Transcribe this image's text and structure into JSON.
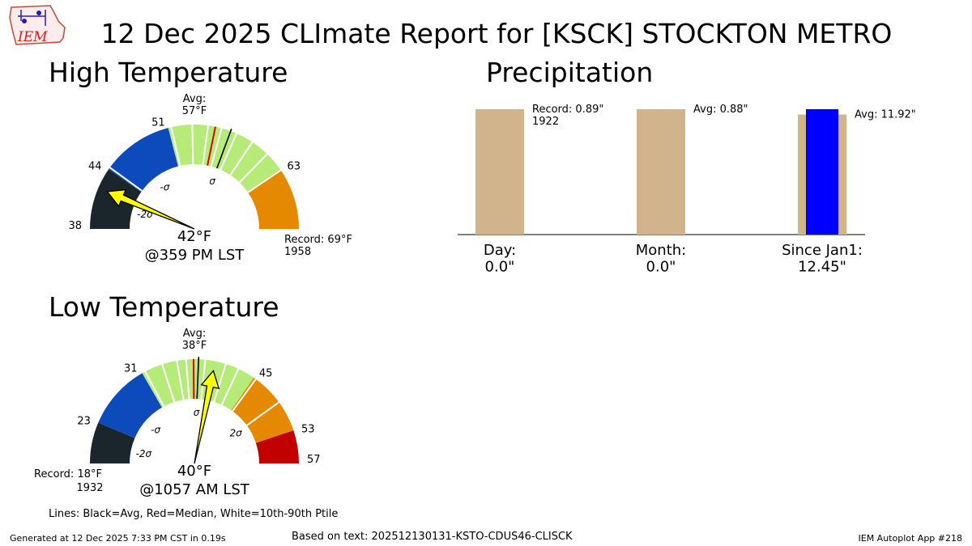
{
  "title": "12 Dec 2025 CLImate Report for [KSCK] STOCKTON METRO",
  "logo": {
    "text": "IEM"
  },
  "colors": {
    "c_m3": "#1b262c",
    "c_m2": "#0d4bbd",
    "c_m1": "#b6eb7a",
    "c_p1": "#e48900",
    "c_p2": "#c10000",
    "precip_bar": "#d2b48c",
    "precip_obs": "#0000ff",
    "needle": "#ffff00"
  },
  "chart_data": [
    {
      "type": "gauge",
      "title": "High Temperature",
      "min": 38,
      "max": 69,
      "bands": [
        {
          "from": 38,
          "to": 44,
          "color": "c_m3",
          "label": "-2σ"
        },
        {
          "from": 44,
          "to": 51,
          "color": "c_m2",
          "label": "-σ"
        },
        {
          "from": 51,
          "to": 63,
          "color": "c_m1",
          "label": "σ"
        },
        {
          "from": 63,
          "to": 69,
          "color": "c_p1",
          "label": ""
        }
      ],
      "band_tick_labels": [
        "38",
        "44",
        "51",
        "63"
      ],
      "avg": 57,
      "avg_label": "Avg:\n57°F",
      "median": 55.5,
      "percentile_lines": [
        44.2,
        51.3,
        53.3,
        54.8,
        56.1,
        57.6,
        59.3,
        61.1,
        63.1
      ],
      "observed": 42,
      "observed_label": "42°F",
      "observed_time": "@359 PM LST",
      "record_label": "Record: 69°F\n1958"
    },
    {
      "type": "gauge",
      "title": "Low Temperature",
      "min": 18,
      "max": 57,
      "bands": [
        {
          "from": 18,
          "to": 23,
          "color": "c_m3",
          "label": "-2σ"
        },
        {
          "from": 23,
          "to": 31,
          "color": "c_m2",
          "label": "-σ"
        },
        {
          "from": 31,
          "to": 45,
          "color": "c_m1",
          "label": "σ"
        },
        {
          "from": 45,
          "to": 53,
          "color": "c_p1",
          "label": "2σ"
        },
        {
          "from": 53,
          "to": 57,
          "color": "c_p2",
          "label": ""
        }
      ],
      "band_tick_labels": [
        "23",
        "31",
        "45",
        "53",
        "57"
      ],
      "avg": 38,
      "avg_label": "Avg:\n38°F",
      "median": 37.4,
      "percentile_lines": [
        31.4,
        33.6,
        35.4,
        36.5,
        38.8,
        41.3,
        42.9,
        45.3,
        49.2
      ],
      "observed": 40,
      "observed_label": "40°F",
      "observed_time": "@1057 AM LST",
      "record_label": "Record: 18°F\n1932"
    },
    {
      "type": "bar",
      "title": "Precipitation",
      "categories": [
        "Day:\n0.0\"",
        "Month:\n0.0\"",
        "Since Jan1:\n12.45\""
      ],
      "series": [
        {
          "values": [
            0.89,
            0.88,
            11.92
          ],
          "color": "precip_bar"
        },
        {
          "values": [
            0.0,
            0.0,
            12.45
          ],
          "color": "precip_obs"
        }
      ],
      "annotations": [
        "Record: 0.89\"\n1922",
        "Avg: 0.88\"",
        "Avg: 11.92\""
      ]
    }
  ],
  "legend_note": "Lines: Black=Avg, Red=Median, White=10th-90th Ptile",
  "footer": {
    "generated": "Generated at 12 Dec 2025 7:33 PM CST in 0.19s",
    "based_on": "Based on text: 202512130131-KSTO-CDUS46-CLISCK",
    "app": "IEM Autoplot App #218"
  }
}
